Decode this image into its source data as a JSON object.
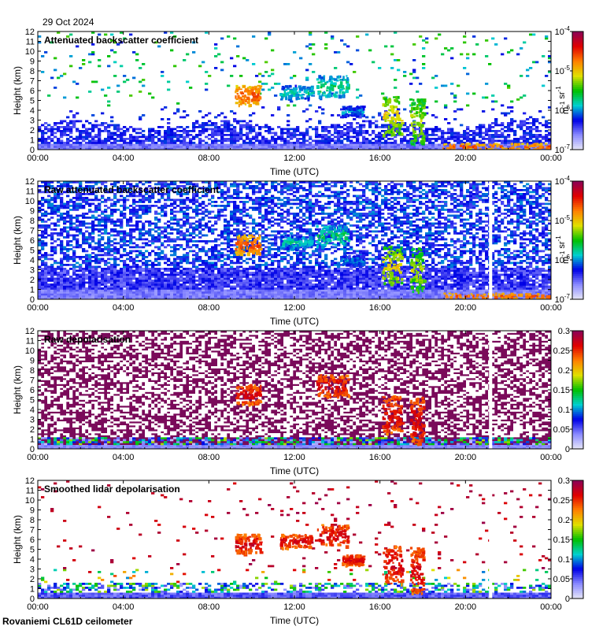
{
  "header": {
    "date": "29 Oct 2024",
    "site": "Rovaniemi CL61D ceilometer"
  },
  "colors": {
    "rainbow": [
      "#e8e8f8",
      "#8b8bff",
      "#0000e6",
      "#00d0d0",
      "#00c000",
      "#e0e000",
      "#ff8000",
      "#e00000",
      "#8b0057"
    ],
    "depol_bg": "#7a0a5a",
    "background": "#ffffff"
  },
  "chart_data": [
    {
      "type": "heatmap",
      "title": "Attenuated backscatter coefficient",
      "xlabel": "Time (UTC)",
      "ylabel": "Height (km)",
      "x_ticks": [
        "00:00",
        "04:00",
        "08:00",
        "12:00",
        "16:00",
        "20:00",
        "00:00"
      ],
      "xlim_hours": [
        0,
        24
      ],
      "y_ticks": [
        "0",
        "1",
        "2",
        "3",
        "4",
        "5",
        "6",
        "7",
        "8",
        "9",
        "10",
        "11",
        "12"
      ],
      "ylim_km": [
        0,
        12
      ],
      "colorbar": {
        "scale": "log",
        "ticks": [
          "10^-7",
          "10^-6",
          "10^-5",
          "10^-4"
        ],
        "range": [
          1e-07,
          0.0001
        ],
        "unit": "m^-1 sr^-1"
      },
      "style": "backscatter",
      "cloud_layers": [
        {
          "start_h": 9.2,
          "end_h": 10.4,
          "base_km": 4.6,
          "top_km": 6.6,
          "level": 0.85
        },
        {
          "start_h": 11.3,
          "end_h": 12.8,
          "base_km": 5.2,
          "top_km": 6.6,
          "level": 0.45
        },
        {
          "start_h": 13.0,
          "end_h": 14.5,
          "base_km": 5.4,
          "top_km": 7.6,
          "level": 0.5
        },
        {
          "start_h": 14.2,
          "end_h": 15.2,
          "base_km": 3.5,
          "top_km": 4.5,
          "level": 0.4
        },
        {
          "start_h": 16.1,
          "end_h": 17.0,
          "base_km": 1.6,
          "top_km": 5.5,
          "level": 0.7
        },
        {
          "start_h": 17.4,
          "end_h": 18.0,
          "base_km": 0.6,
          "top_km": 5.3,
          "level": 0.65
        },
        {
          "start_h": 18.9,
          "end_h": 24.0,
          "base_km": 0.1,
          "top_km": 0.7,
          "level": 0.85
        }
      ],
      "data_gap": null
    },
    {
      "type": "heatmap",
      "title": "Raw attenuated backscatter coefficient",
      "xlabel": "Time (UTC)",
      "ylabel": "Height (km)",
      "x_ticks": [
        "00:00",
        "04:00",
        "08:00",
        "12:00",
        "16:00",
        "20:00",
        "00:00"
      ],
      "xlim_hours": [
        0,
        24
      ],
      "y_ticks": [
        "0",
        "1",
        "2",
        "3",
        "4",
        "5",
        "6",
        "7",
        "8",
        "9",
        "10",
        "11",
        "12"
      ],
      "ylim_km": [
        0,
        12
      ],
      "colorbar": {
        "scale": "log",
        "ticks": [
          "10^-7",
          "10^-6",
          "10^-5",
          "10^-4"
        ],
        "range": [
          1e-07,
          0.0001
        ],
        "unit": "m^-1 sr^-1"
      },
      "style": "raw_backscatter",
      "cloud_layers": [
        {
          "start_h": 9.2,
          "end_h": 10.4,
          "base_km": 4.6,
          "top_km": 6.6,
          "level": 0.85
        },
        {
          "start_h": 11.3,
          "end_h": 12.8,
          "base_km": 5.2,
          "top_km": 6.6,
          "level": 0.45
        },
        {
          "start_h": 13.0,
          "end_h": 14.5,
          "base_km": 5.4,
          "top_km": 7.6,
          "level": 0.5
        },
        {
          "start_h": 14.2,
          "end_h": 15.2,
          "base_km": 3.5,
          "top_km": 4.5,
          "level": 0.4
        },
        {
          "start_h": 16.1,
          "end_h": 17.0,
          "base_km": 1.6,
          "top_km": 5.5,
          "level": 0.7
        },
        {
          "start_h": 17.4,
          "end_h": 18.0,
          "base_km": 0.6,
          "top_km": 5.3,
          "level": 0.65
        },
        {
          "start_h": 18.9,
          "end_h": 24.0,
          "base_km": 0.1,
          "top_km": 0.7,
          "level": 0.85
        }
      ],
      "data_gap": {
        "start_h": 21.1,
        "end_h": 21.25
      }
    },
    {
      "type": "heatmap",
      "title": "Raw depolarisation",
      "xlabel": "Time (UTC)",
      "ylabel": "Height (km)",
      "x_ticks": [
        "00:00",
        "04:00",
        "08:00",
        "12:00",
        "16:00",
        "20:00",
        "00:00"
      ],
      "xlim_hours": [
        0,
        24
      ],
      "y_ticks": [
        "0",
        "1",
        "2",
        "3",
        "4",
        "5",
        "6",
        "7",
        "8",
        "9",
        "10",
        "11",
        "12"
      ],
      "ylim_km": [
        0,
        12
      ],
      "colorbar": {
        "scale": "linear",
        "ticks": [
          "0",
          "0.05",
          "0.1",
          "0.15",
          "0.2",
          "0.25",
          "0.3"
        ],
        "range": [
          0,
          0.3
        ],
        "unit": ""
      },
      "style": "raw_depol",
      "cloud_layers": [
        {
          "start_h": 9.2,
          "end_h": 10.4,
          "base_km": 4.6,
          "top_km": 6.6,
          "level": 0.95
        },
        {
          "start_h": 13.0,
          "end_h": 14.5,
          "base_km": 5.4,
          "top_km": 7.6,
          "level": 0.95
        },
        {
          "start_h": 16.1,
          "end_h": 17.0,
          "base_km": 1.6,
          "top_km": 5.5,
          "level": 0.95
        },
        {
          "start_h": 17.4,
          "end_h": 18.0,
          "base_km": 0.6,
          "top_km": 5.3,
          "level": 0.95
        }
      ],
      "data_gap": {
        "start_h": 21.1,
        "end_h": 21.25
      }
    },
    {
      "type": "heatmap",
      "title": "Smoothed lidar depolarisation",
      "xlabel": "Time (UTC)",
      "ylabel": "Height (km)",
      "x_ticks": [
        "00:00",
        "04:00",
        "08:00",
        "12:00",
        "16:00",
        "20:00",
        "00:00"
      ],
      "xlim_hours": [
        0,
        24
      ],
      "y_ticks": [
        "0",
        "1",
        "2",
        "3",
        "4",
        "5",
        "6",
        "7",
        "8",
        "9",
        "10",
        "11",
        "12"
      ],
      "ylim_km": [
        0,
        12
      ],
      "colorbar": {
        "scale": "linear",
        "ticks": [
          "0",
          "0.05",
          "0.1",
          "0.15",
          "0.2",
          "0.25",
          "0.3"
        ],
        "range": [
          0,
          0.3
        ],
        "unit": ""
      },
      "style": "smooth_depol",
      "cloud_layers": [
        {
          "start_h": 9.2,
          "end_h": 10.4,
          "base_km": 4.6,
          "top_km": 6.6,
          "level": 0.95
        },
        {
          "start_h": 11.3,
          "end_h": 12.8,
          "base_km": 5.2,
          "top_km": 6.6,
          "level": 0.95
        },
        {
          "start_h": 13.0,
          "end_h": 14.5,
          "base_km": 5.4,
          "top_km": 7.6,
          "level": 0.95
        },
        {
          "start_h": 14.2,
          "end_h": 15.2,
          "base_km": 3.5,
          "top_km": 4.5,
          "level": 0.95
        },
        {
          "start_h": 16.1,
          "end_h": 17.0,
          "base_km": 1.6,
          "top_km": 5.5,
          "level": 0.95
        },
        {
          "start_h": 17.4,
          "end_h": 18.0,
          "base_km": 0.6,
          "top_km": 5.3,
          "level": 0.95
        }
      ],
      "data_gap": {
        "start_h": 21.1,
        "end_h": 21.25
      }
    }
  ]
}
